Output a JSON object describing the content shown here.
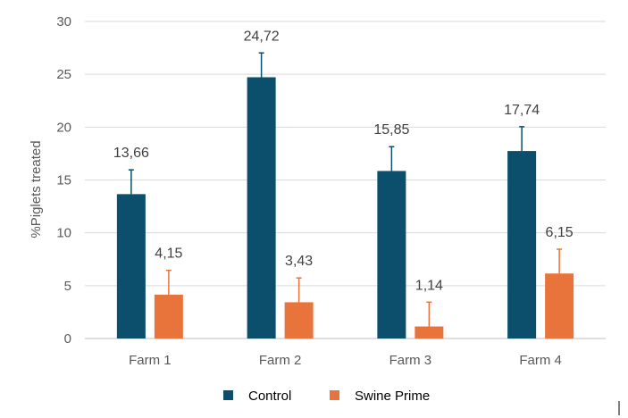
{
  "chart_data": {
    "type": "bar",
    "categories": [
      "Farm 1",
      "Farm 2",
      "Farm 3",
      "Farm 4"
    ],
    "series": [
      {
        "name": "Control",
        "color": "#0b4f6c",
        "values": [
          13.66,
          24.72,
          15.85,
          17.74
        ],
        "labels": [
          "13,66",
          "24,72",
          "15,85",
          "17,74"
        ],
        "error_plus": [
          2.3,
          2.3,
          2.3,
          2.3
        ]
      },
      {
        "name": "Swine Prime",
        "color": "#e8743b",
        "values": [
          4.15,
          3.43,
          1.14,
          6.15
        ],
        "labels": [
          "4,15",
          "3,43",
          "1,14",
          "6,15"
        ],
        "error_plus": [
          2.3,
          2.3,
          2.3,
          2.3
        ]
      }
    ],
    "title": "",
    "xlabel": "",
    "ylabel": "%Piglets treated",
    "ylim": [
      0,
      30
    ],
    "yticks": [
      0,
      5,
      10,
      15,
      20,
      25,
      30
    ],
    "grid": true,
    "legend": "bottom"
  }
}
